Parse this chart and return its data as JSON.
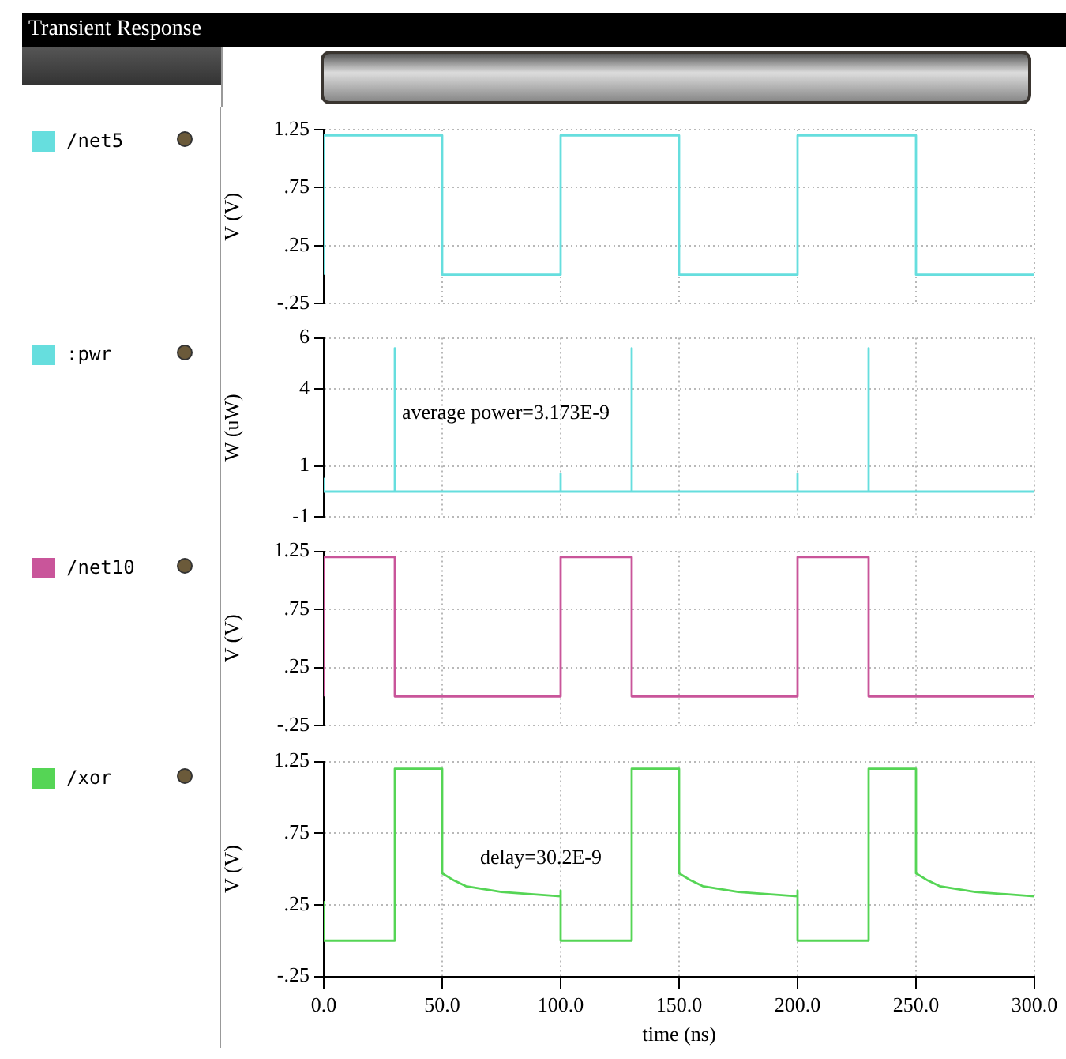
{
  "chart_data": [
    {
      "type": "line",
      "title": "Transient Response",
      "ylabel": "V (V)",
      "x": [
        0,
        0,
        50,
        50,
        100,
        100,
        150,
        150,
        200,
        200,
        250,
        250,
        300
      ],
      "series": [
        {
          "name": "/net5",
          "color": "#66dede",
          "values": [
            0,
            1.2,
            1.2,
            0,
            0,
            1.2,
            1.2,
            0,
            0,
            1.2,
            1.2,
            0,
            0
          ]
        }
      ],
      "xlim": [
        0,
        300
      ],
      "xticks": [
        0,
        50,
        100,
        150,
        200,
        250,
        300
      ],
      "ylim": [
        -0.25,
        1.25
      ],
      "yticks": [
        1.25,
        {
          "value": 0.75,
          "label": ".75"
        },
        {
          "value": 0.25,
          "label": ".25"
        },
        {
          "value": -0.25,
          "label": "-.25"
        }
      ],
      "grid": true,
      "legend": "left",
      "tick_labels": "y",
      "marker": "none"
    },
    {
      "type": "line",
      "ylabel": "W (uW)",
      "annotations": [
        "average power=3.173E-9"
      ],
      "x": [
        0,
        0,
        30,
        30,
        30,
        100,
        100,
        100,
        130,
        130,
        130,
        200,
        200,
        200,
        230,
        230,
        230,
        300
      ],
      "series": [
        {
          "name": ":pwr",
          "color": "#66dede",
          "values": [
            0.5,
            0,
            0,
            5.6,
            0,
            0,
            0.7,
            0,
            0,
            5.6,
            0,
            0,
            0.7,
            0,
            0,
            5.6,
            0,
            0
          ]
        }
      ],
      "xlim": [
        0,
        300
      ],
      "xticks": [
        0,
        50,
        100,
        150,
        200,
        250,
        300
      ],
      "ylim": [
        -1,
        6
      ],
      "yticks": [
        6,
        4,
        1,
        -1
      ],
      "grid": true,
      "legend": "left",
      "tick_labels": "y",
      "marker": "none"
    },
    {
      "type": "line",
      "ylabel": "V (V)",
      "x": [
        0,
        0,
        30,
        30,
        100,
        100,
        130,
        130,
        200,
        200,
        230,
        230,
        300
      ],
      "series": [
        {
          "name": "/net10",
          "color": "#c9559a",
          "values": [
            0,
            1.2,
            1.2,
            0,
            0,
            1.2,
            1.2,
            0,
            0,
            1.2,
            1.2,
            0,
            0
          ]
        }
      ],
      "xlim": [
        0,
        300
      ],
      "xticks": [
        0,
        50,
        100,
        150,
        200,
        250,
        300
      ],
      "ylim": [
        -0.25,
        1.25
      ],
      "yticks": [
        1.25,
        {
          "value": 0.75,
          "label": ".75"
        },
        {
          "value": 0.25,
          "label": ".25"
        },
        {
          "value": -0.25,
          "label": "-.25"
        }
      ],
      "grid": true,
      "legend": "left",
      "tick_labels": "y",
      "marker": "none"
    },
    {
      "type": "line",
      "ylabel": "V (V)",
      "xlabel": "time (ns)",
      "annotations": [
        "delay=30.2E-9"
      ],
      "x": [
        0,
        0,
        30,
        30,
        50,
        50,
        55,
        60,
        75,
        100,
        100,
        100,
        130,
        130,
        150,
        150,
        155,
        160,
        175,
        200,
        200,
        200,
        230,
        230,
        250,
        250,
        255,
        260,
        275,
        300
      ],
      "series": [
        {
          "name": "/xor",
          "color": "#55d555",
          "values": [
            0.27,
            0,
            0,
            1.2,
            1.2,
            0.47,
            0.42,
            0.38,
            0.34,
            0.31,
            0.35,
            0,
            0,
            1.2,
            1.2,
            0.47,
            0.42,
            0.38,
            0.34,
            0.31,
            0.35,
            0,
            0,
            1.2,
            1.2,
            0.47,
            0.42,
            0.38,
            0.34,
            0.31
          ]
        }
      ],
      "xlim": [
        0,
        300
      ],
      "xticks": [
        {
          "value": 0,
          "label": "0.0"
        },
        {
          "value": 50,
          "label": "50.0"
        },
        {
          "value": 100,
          "label": "100.0"
        },
        {
          "value": 150,
          "label": "150.0"
        },
        {
          "value": 200,
          "label": "200.0"
        },
        {
          "value": 250,
          "label": "250.0"
        },
        {
          "value": 300,
          "label": "300.0"
        }
      ],
      "ylim": [
        -0.25,
        1.25
      ],
      "yticks": [
        1.25,
        {
          "value": 0.75,
          "label": ".75"
        },
        {
          "value": 0.25,
          "label": ".25"
        },
        {
          "value": -0.25,
          "label": "-.25"
        }
      ],
      "grid": true,
      "legend": "left",
      "marker": "none"
    }
  ]
}
